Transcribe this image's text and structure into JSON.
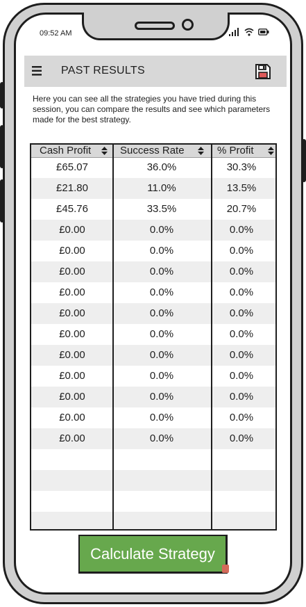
{
  "status_bar": {
    "time": "09:52 AM"
  },
  "header": {
    "title": "PAST RESULTS"
  },
  "description": "Here you can see all the strategies you have tried during this session, you can compare the results and see which parameters made for the best strategy.",
  "table": {
    "columns": [
      "Cash Profit",
      "Success Rate",
      "% Profit"
    ],
    "rows": [
      [
        "£65.07",
        "36.0%",
        "30.3%"
      ],
      [
        "£21.80",
        "11.0%",
        "13.5%"
      ],
      [
        "£45.76",
        "33.5%",
        "20.7%"
      ],
      [
        "£0.00",
        "0.0%",
        "0.0%"
      ],
      [
        "£0.00",
        "0.0%",
        "0.0%"
      ],
      [
        "£0.00",
        "0.0%",
        "0.0%"
      ],
      [
        "£0.00",
        "0.0%",
        "0.0%"
      ],
      [
        "£0.00",
        "0.0%",
        "0.0%"
      ],
      [
        "£0.00",
        "0.0%",
        "0.0%"
      ],
      [
        "£0.00",
        "0.0%",
        "0.0%"
      ],
      [
        "£0.00",
        "0.0%",
        "0.0%"
      ],
      [
        "£0.00",
        "0.0%",
        "0.0%"
      ],
      [
        "£0.00",
        "0.0%",
        "0.0%"
      ],
      [
        "£0.00",
        "0.0%",
        "0.0%"
      ]
    ]
  },
  "actions": {
    "calculate_label": "Calculate Strategy"
  },
  "colors": {
    "header_bg": "#d8d8d8",
    "button_bg": "#67a84d",
    "row_alt": "#eeeeee"
  },
  "icons": [
    "menu-icon",
    "save-icon",
    "signal-icon",
    "wifi-icon",
    "battery-icon",
    "sort-icon"
  ]
}
